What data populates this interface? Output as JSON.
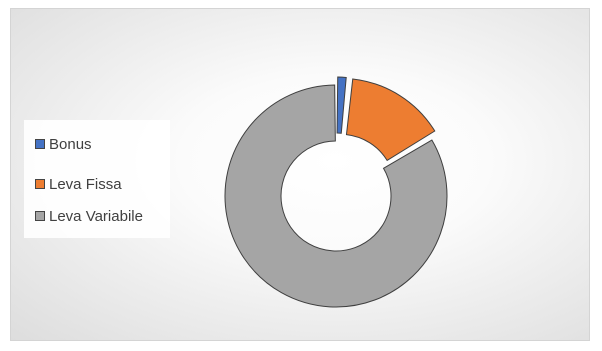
{
  "chart_data": {
    "type": "pie",
    "title": "",
    "categories": [
      "Bonus",
      "Leva Fissa",
      "Leva Variabile"
    ],
    "values": [
      1.6,
      14.8,
      83.6
    ],
    "unit": "%",
    "colors": [
      "#4472C4",
      "#ED7D31",
      "#A5A5A5"
    ],
    "donut": true,
    "legend_position": "left",
    "exploded": true
  }
}
